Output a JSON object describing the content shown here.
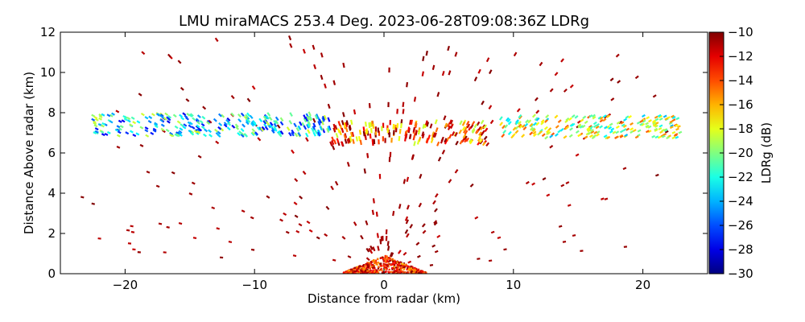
{
  "chart_data": {
    "type": "heatmap",
    "title": "LMU miraMACS 253.4 Deg. 2023-06-28T09:08:36Z  LDRg",
    "xlabel": "Distance from radar (km)",
    "ylabel": "Distance Above radar  (km)",
    "xlim": [
      -25,
      25
    ],
    "ylim": [
      0,
      12
    ],
    "x_ticks": [
      -20,
      -10,
      0,
      10,
      20
    ],
    "x_tick_labels": [
      "−20",
      "−10",
      "0",
      "10",
      "20"
    ],
    "y_ticks": [
      0,
      2,
      4,
      6,
      8,
      10,
      12
    ],
    "y_tick_labels": [
      "0",
      "2",
      "4",
      "6",
      "8",
      "10",
      "12"
    ],
    "colorbar": {
      "label": "LDRg (dB)",
      "vmin": -30,
      "vmax": -10,
      "ticks": [
        -10,
        -12,
        -14,
        -16,
        -18,
        -20,
        -22,
        -24,
        -26,
        -28,
        -30
      ],
      "tick_labels": [
        "−10",
        "−12",
        "−14",
        "−16",
        "−18",
        "−20",
        "−22",
        "−24",
        "−26",
        "−28",
        "−30"
      ],
      "colormap": "jet"
    },
    "grid": false,
    "features": [
      {
        "name": "cloud-layer-west",
        "x_range": [
          -22.5,
          -4.0
        ],
        "height_km": 7.4,
        "ldr_db": -23
      },
      {
        "name": "cloud-layer-center",
        "x_range": [
          -4.0,
          8.0
        ],
        "height_km": 7.0,
        "ldr_db": -14
      },
      {
        "name": "cloud-layer-east",
        "x_range": [
          9.0,
          23.0
        ],
        "height_km": 7.3,
        "ldr_db": -19
      },
      {
        "name": "ground-clutter",
        "x_range": [
          -4.0,
          4.0
        ],
        "height_km": 0.3,
        "ldr_db": -10
      },
      {
        "name": "sparse-insect-echoes",
        "x_range": [
          -23.0,
          23.0
        ],
        "height_km": 6.0,
        "ldr_db": -10
      }
    ]
  }
}
